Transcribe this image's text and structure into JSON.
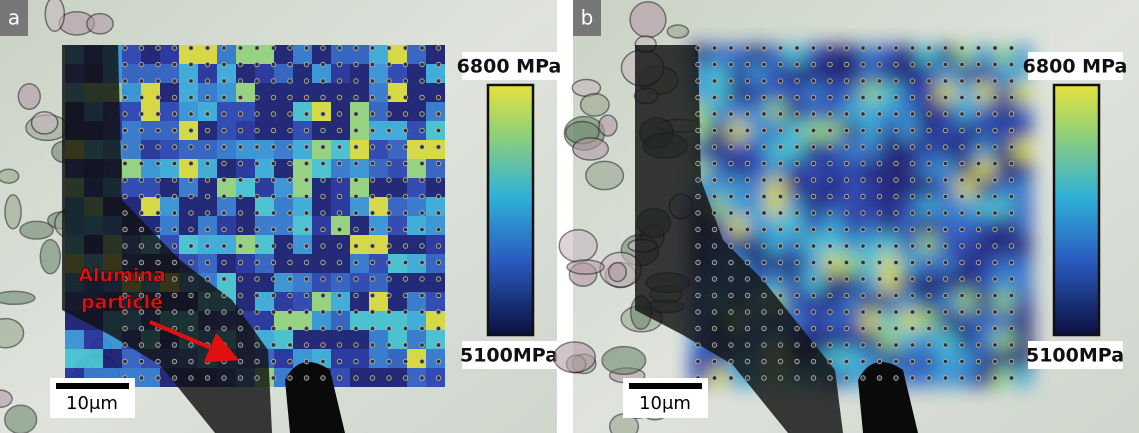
{
  "panels": [
    {
      "label": "a",
      "colorbar_max": "6800 MPa",
      "colorbar_min": "5100MPa",
      "scale_bar": "10μm",
      "annotation": [
        "Alumina",
        "particle"
      ]
    },
    {
      "label": "b",
      "colorbar_max": "6800 MPa",
      "colorbar_min": "5100MPa",
      "scale_bar": "10μm"
    }
  ]
}
